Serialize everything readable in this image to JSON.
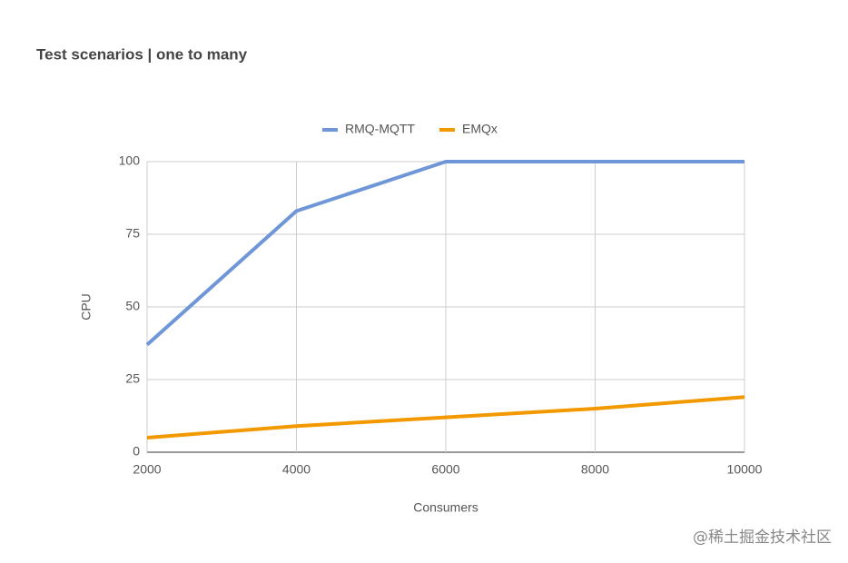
{
  "chart_data": {
    "type": "line",
    "title": "Test scenarios | one to many",
    "x": [
      2000,
      4000,
      6000,
      8000,
      10000
    ],
    "series": [
      {
        "name": "RMQ-MQTT",
        "color": "#6f97d8",
        "values": [
          37,
          83,
          100,
          100,
          100
        ]
      },
      {
        "name": "EMQx",
        "color": "#f29900",
        "values": [
          5,
          9,
          12,
          15,
          19
        ]
      }
    ],
    "xlabel": "Consumers",
    "ylabel": "CPU",
    "xlim": [
      2000,
      10000
    ],
    "xticks": [
      2000,
      4000,
      6000,
      8000,
      10000
    ],
    "ylim": [
      0,
      100
    ],
    "yticks": [
      0,
      25,
      50,
      75,
      100
    ],
    "grid": true,
    "legend": "top"
  },
  "watermark": "@稀土掘金技术社区"
}
